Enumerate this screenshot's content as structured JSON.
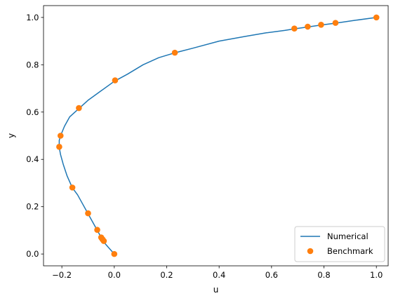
{
  "chart_data": {
    "type": "line",
    "xlabel": "u",
    "ylabel": "y",
    "xlim": [
      -0.27,
      1.045
    ],
    "ylim": [
      -0.05,
      1.05
    ],
    "x_ticks": [
      -0.2,
      0.0,
      0.2,
      0.4,
      0.6,
      0.8,
      1.0
    ],
    "x_tick_labels": [
      "−0.2",
      "0.0",
      "0.2",
      "0.4",
      "0.6",
      "0.8",
      "1.0"
    ],
    "y_ticks": [
      0.0,
      0.2,
      0.4,
      0.6,
      0.8,
      1.0
    ],
    "y_tick_labels": [
      "0.0",
      "0.2",
      "0.4",
      "0.6",
      "0.8",
      "1.0"
    ],
    "grid": false,
    "legend_position": "lower right",
    "series": [
      {
        "name": "Numerical",
        "kind": "line",
        "color": "#1f77b4",
        "points": [
          [
            0.0,
            0.0
          ],
          [
            -0.02,
            0.025
          ],
          [
            -0.04,
            0.05
          ],
          [
            -0.06,
            0.09
          ],
          [
            -0.08,
            0.13
          ],
          [
            -0.1,
            0.17
          ],
          [
            -0.12,
            0.21
          ],
          [
            -0.14,
            0.25
          ],
          [
            -0.16,
            0.28
          ],
          [
            -0.18,
            0.33
          ],
          [
            -0.195,
            0.38
          ],
          [
            -0.205,
            0.42
          ],
          [
            -0.21,
            0.45
          ],
          [
            -0.21,
            0.48
          ],
          [
            -0.205,
            0.5
          ],
          [
            -0.19,
            0.54
          ],
          [
            -0.17,
            0.58
          ],
          [
            -0.14,
            0.61
          ],
          [
            -0.1,
            0.65
          ],
          [
            -0.05,
            0.69
          ],
          [
            0.0,
            0.73
          ],
          [
            0.05,
            0.76
          ],
          [
            0.11,
            0.8
          ],
          [
            0.17,
            0.83
          ],
          [
            0.23,
            0.85
          ],
          [
            0.3,
            0.87
          ],
          [
            0.4,
            0.9
          ],
          [
            0.5,
            0.92
          ],
          [
            0.58,
            0.935
          ],
          [
            0.65,
            0.945
          ],
          [
            0.69,
            0.952
          ],
          [
            0.74,
            0.96
          ],
          [
            0.79,
            0.968
          ],
          [
            0.845,
            0.976
          ],
          [
            0.92,
            0.988
          ],
          [
            1.0,
            1.0
          ]
        ]
      },
      {
        "name": "Benchmark",
        "kind": "markers",
        "color": "#ff7f0e",
        "points": [
          [
            0.0,
            0.0
          ],
          [
            -0.04,
            0.055
          ],
          [
            -0.045,
            0.062
          ],
          [
            -0.05,
            0.07
          ],
          [
            -0.065,
            0.102
          ],
          [
            -0.1,
            0.172
          ],
          [
            -0.16,
            0.281
          ],
          [
            -0.21,
            0.453
          ],
          [
            -0.205,
            0.5
          ],
          [
            -0.135,
            0.617
          ],
          [
            0.003,
            0.734
          ],
          [
            0.231,
            0.851
          ],
          [
            0.687,
            0.953
          ],
          [
            0.738,
            0.961
          ],
          [
            0.789,
            0.969
          ],
          [
            0.844,
            0.977
          ],
          [
            1.0,
            1.0
          ]
        ]
      }
    ]
  }
}
